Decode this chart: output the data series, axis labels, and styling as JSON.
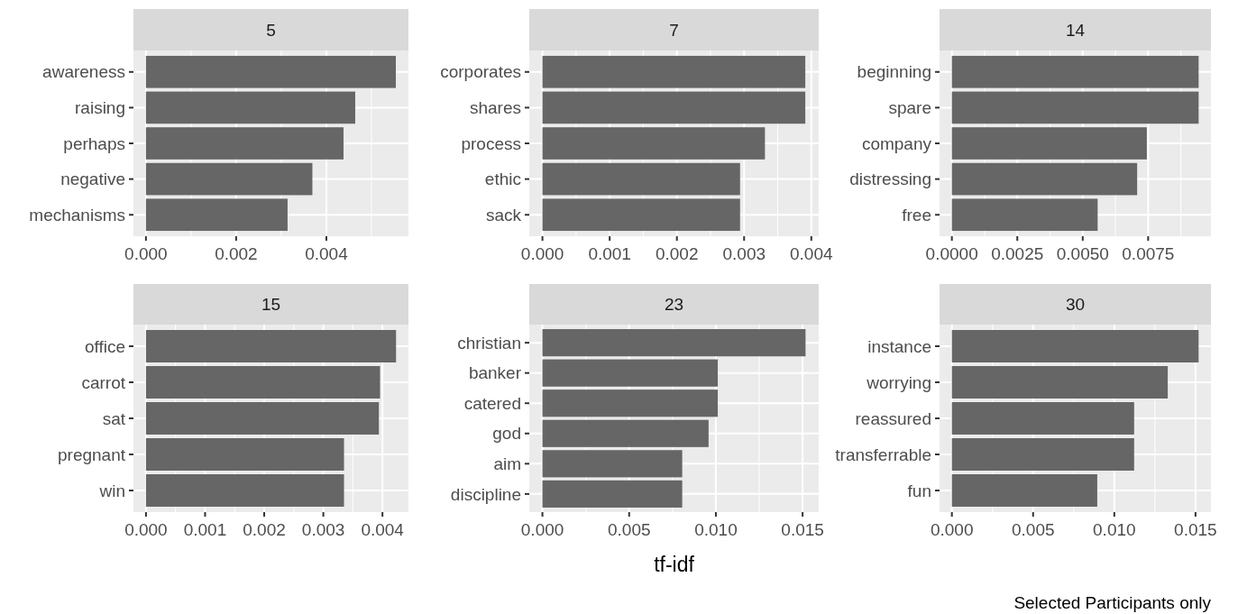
{
  "chart_data": [
    {
      "type": "bar",
      "orientation": "horizontal",
      "title": "5",
      "categories": [
        "awareness",
        "raising",
        "perhaps",
        "negative",
        "mechanisms"
      ],
      "values": [
        0.00554,
        0.00464,
        0.00438,
        0.00369,
        0.00314
      ],
      "color": "#666666",
      "xlim": [
        -0.000277,
        0.00582
      ],
      "xticks": [
        {
          "value": 0,
          "label": "0.000"
        },
        {
          "value": 0.002,
          "label": "0.002"
        },
        {
          "value": 0.004,
          "label": "0.004"
        }
      ],
      "grid": true
    },
    {
      "type": "bar",
      "orientation": "horizontal",
      "title": "7",
      "categories": [
        "corporates",
        "shares",
        "process",
        "ethic",
        "sack"
      ],
      "values": [
        0.00391,
        0.00391,
        0.00331,
        0.00294,
        0.00294
      ],
      "color": "#666666",
      "xlim": [
        -0.000196,
        0.00411
      ],
      "xticks": [
        {
          "value": 0,
          "label": "0.000"
        },
        {
          "value": 0.001,
          "label": "0.001"
        },
        {
          "value": 0.002,
          "label": "0.002"
        },
        {
          "value": 0.003,
          "label": "0.003"
        },
        {
          "value": 0.004,
          "label": "0.004"
        }
      ],
      "grid": true
    },
    {
      "type": "bar",
      "orientation": "horizontal",
      "title": "14",
      "categories": [
        "beginning",
        "spare",
        "company",
        "distressing",
        "free"
      ],
      "values": [
        0.00943,
        0.00943,
        0.00745,
        0.00708,
        0.00557
      ],
      "color": "#666666",
      "xlim": [
        -0.000471,
        0.0099
      ],
      "xticks": [
        {
          "value": 0,
          "label": "0.0000"
        },
        {
          "value": 0.0025,
          "label": "0.0025"
        },
        {
          "value": 0.005,
          "label": "0.0050"
        },
        {
          "value": 0.0075,
          "label": "0.0075"
        }
      ],
      "grid": true
    },
    {
      "type": "bar",
      "orientation": "horizontal",
      "title": "15",
      "categories": [
        "office",
        "carrot",
        "sat",
        "pregnant",
        "win"
      ],
      "values": [
        0.00423,
        0.00396,
        0.00394,
        0.00335,
        0.00335
      ],
      "color": "#666666",
      "xlim": [
        -0.000212,
        0.00444
      ],
      "xticks": [
        {
          "value": 0,
          "label": "0.000"
        },
        {
          "value": 0.001,
          "label": "0.001"
        },
        {
          "value": 0.002,
          "label": "0.002"
        },
        {
          "value": 0.003,
          "label": "0.003"
        },
        {
          "value": 0.004,
          "label": "0.004"
        }
      ],
      "grid": true
    },
    {
      "type": "bar",
      "orientation": "horizontal",
      "title": "23",
      "xlabel": "tf-idf",
      "categories": [
        "christian",
        "banker",
        "catered",
        "god",
        "aim",
        "discipline"
      ],
      "values": [
        0.01517,
        0.01011,
        0.01011,
        0.00958,
        0.00806,
        0.00806
      ],
      "color": "#666666",
      "xlim": [
        -0.000758,
        0.01593
      ],
      "xticks": [
        {
          "value": 0,
          "label": "0.000"
        },
        {
          "value": 0.005,
          "label": "0.005"
        },
        {
          "value": 0.01,
          "label": "0.010"
        },
        {
          "value": 0.015,
          "label": "0.015"
        }
      ],
      "grid": true
    },
    {
      "type": "bar",
      "orientation": "horizontal",
      "title": "30",
      "categories": [
        "instance",
        "worrying",
        "reassured",
        "transferrable",
        "fun"
      ],
      "values": [
        0.01519,
        0.01329,
        0.01122,
        0.01122,
        0.00895
      ],
      "color": "#666666",
      "xlim": [
        -0.00076,
        0.01595
      ],
      "xticks": [
        {
          "value": 0,
          "label": "0.000"
        },
        {
          "value": 0.005,
          "label": "0.005"
        },
        {
          "value": 0.01,
          "label": "0.010"
        },
        {
          "value": 0.015,
          "label": "0.015"
        }
      ],
      "grid": true,
      "annotations": [
        "Selected Participants only"
      ]
    }
  ]
}
